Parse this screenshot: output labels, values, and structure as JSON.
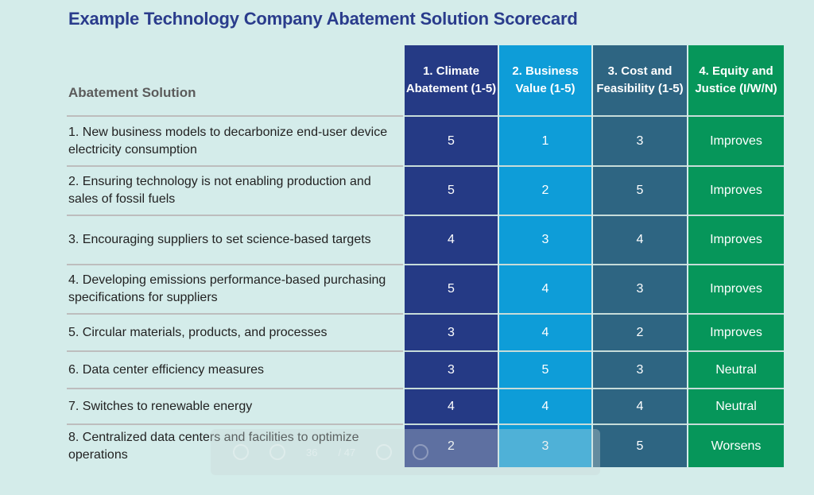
{
  "title": "Example Technology Company Abatement Solution Scorecard",
  "columns": [
    {
      "label": "Abatement Solution"
    },
    {
      "label": "1. Climate Abatement (1-5)",
      "color": "#253a85"
    },
    {
      "label": "2. Business Value (1-5)",
      "color": "#0e9dd8"
    },
    {
      "label": "3. Cost and Feasibility (1-5)",
      "color": "#2e6582"
    },
    {
      "label": "4. Equity and Justice (I/W/N)",
      "color": "#06965a"
    }
  ],
  "rows": [
    {
      "solution": "1. New business models to decarbonize end-user device electricity consumption",
      "climate": "5",
      "business": "1",
      "cost": "3",
      "equity": "Improves"
    },
    {
      "solution": "2. Ensuring technology is not enabling production and sales of fossil fuels",
      "climate": "5",
      "business": "2",
      "cost": "5",
      "equity": "Improves"
    },
    {
      "solution": "3. Encouraging suppliers to set science-based targets",
      "climate": "4",
      "business": "3",
      "cost": "4",
      "equity": "Improves"
    },
    {
      "solution": "4. Developing emissions performance-based purchasing specifications for suppliers",
      "climate": "5",
      "business": "4",
      "cost": "3",
      "equity": "Improves"
    },
    {
      "solution": "5. Circular materials, products, and processes",
      "climate": "3",
      "business": "4",
      "cost": "2",
      "equity": "Improves"
    },
    {
      "solution": "6. Data center efficiency measures",
      "climate": "3",
      "business": "5",
      "cost": "3",
      "equity": "Neutral"
    },
    {
      "solution": "7. Switches to renewable energy",
      "climate": "4",
      "business": "4",
      "cost": "4",
      "equity": "Neutral"
    },
    {
      "solution": "8. Centralized data centers and facilities to optimize operations",
      "climate": "2",
      "business": "3",
      "cost": "5",
      "equity": "Worsens"
    }
  ],
  "viewer_toolbar": {
    "page_current": "36",
    "page_total": "/ 47"
  },
  "colors": {
    "background": "#d4ecea",
    "title": "#2a3c8c"
  }
}
